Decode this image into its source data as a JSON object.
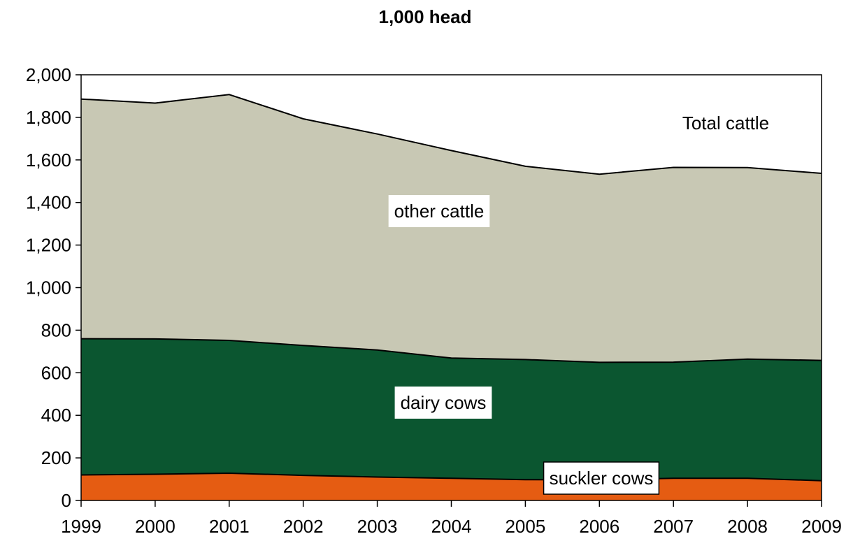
{
  "chart_data": {
    "type": "area",
    "stacked": true,
    "title": "1,000 head",
    "xlabel": "",
    "ylabel": "",
    "x": [
      "1999",
      "2000",
      "2001",
      "2002",
      "2003",
      "2004",
      "2005",
      "2006",
      "2007",
      "2008",
      "2009"
    ],
    "ylim": [
      0,
      2000
    ],
    "yticks": [
      "0",
      "200",
      "400",
      "600",
      "800",
      "1,000",
      "1,200",
      "1,400",
      "1,600",
      "1,800",
      "2,000"
    ],
    "grid": false,
    "series": [
      {
        "name": "suckler cows",
        "color": "#e55c12",
        "values": [
          120,
          123,
          128,
          118,
          110,
          104,
          98,
          97,
          104,
          104,
          93
        ]
      },
      {
        "name": "dairy cows",
        "color": "#0b5630",
        "values": [
          640,
          636,
          624,
          610,
          597,
          565,
          564,
          552,
          546,
          560,
          565
        ]
      },
      {
        "name": "other cattle",
        "color": "#c8c8b4",
        "values": [
          1126,
          1108,
          1155,
          1065,
          1015,
          975,
          908,
          884,
          915,
          900,
          879
        ]
      }
    ],
    "total_label": "Total cattle",
    "total_values": [
      1886,
      1867,
      1907,
      1793,
      1722,
      1644,
      1570,
      1533,
      1565,
      1564,
      1537
    ]
  }
}
